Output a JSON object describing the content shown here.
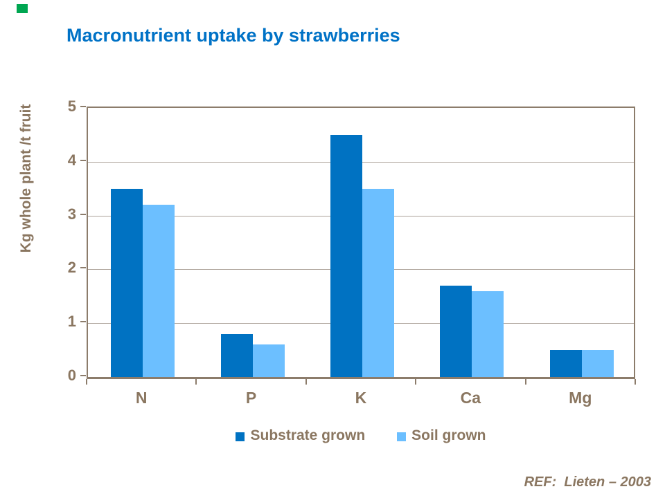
{
  "slide": {
    "title": "Macronutrient uptake by strawberries",
    "reference": "REF:  Lieten – 2003",
    "colors": {
      "title_blue": "#0072C6",
      "text_brown": "#8A7660",
      "axis_border": "#8C7C6B",
      "gridline": "#ABA198",
      "green_square": "#00A651"
    }
  },
  "chart_data": {
    "type": "bar",
    "title": "Macronutrient uptake by strawberries",
    "categories": [
      "N",
      "P",
      "K",
      "Ca",
      "Mg"
    ],
    "series": [
      {
        "name": "Substrate grown",
        "color": "#0072C2",
        "values": [
          3.5,
          0.8,
          4.5,
          1.7,
          0.5
        ]
      },
      {
        "name": "Soil grown",
        "color": "#6CBFFF",
        "values": [
          3.2,
          0.6,
          3.5,
          1.6,
          0.5
        ]
      }
    ],
    "xlabel": "",
    "ylabel": "Kg whole plant /t fruit",
    "ylim": [
      0,
      5
    ],
    "yticks": [
      0,
      1,
      2,
      3,
      4,
      5
    ],
    "grid": true,
    "legend_position": "bottom"
  }
}
